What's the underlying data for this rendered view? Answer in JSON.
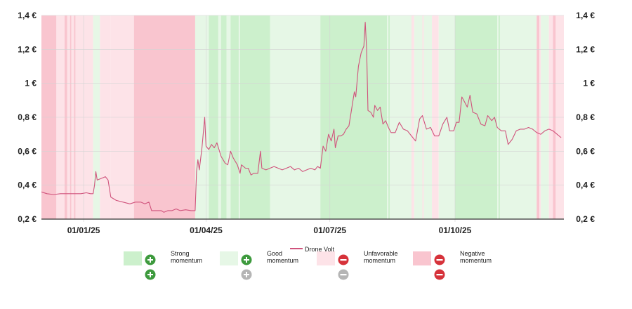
{
  "chart_data": {
    "type": "line",
    "series": [
      {
        "name": "Drone Volt",
        "color": "#d0537c",
        "points": [
          [
            "2024-12-01",
            0.36
          ],
          [
            "2024-12-05",
            0.35
          ],
          [
            "2024-12-10",
            0.345
          ],
          [
            "2024-12-15",
            0.35
          ],
          [
            "2024-12-20",
            0.35
          ],
          [
            "2024-12-25",
            0.35
          ],
          [
            "2024-12-30",
            0.35
          ],
          [
            "2025-01-03",
            0.355
          ],
          [
            "2025-01-06",
            0.35
          ],
          [
            "2025-01-08",
            0.35
          ],
          [
            "2025-01-09",
            0.4
          ],
          [
            "2025-01-10",
            0.48
          ],
          [
            "2025-01-11",
            0.43
          ],
          [
            "2025-01-14",
            0.44
          ],
          [
            "2025-01-17",
            0.45
          ],
          [
            "2025-01-19",
            0.43
          ],
          [
            "2025-01-21",
            0.33
          ],
          [
            "2025-01-25",
            0.31
          ],
          [
            "2025-01-30",
            0.3
          ],
          [
            "2025-02-04",
            0.29
          ],
          [
            "2025-02-08",
            0.3
          ],
          [
            "2025-02-12",
            0.3
          ],
          [
            "2025-02-15",
            0.29
          ],
          [
            "2025-02-18",
            0.3
          ],
          [
            "2025-02-20",
            0.25
          ],
          [
            "2025-02-24",
            0.25
          ],
          [
            "2025-02-27",
            0.25
          ],
          [
            "2025-03-01",
            0.24
          ],
          [
            "2025-03-04",
            0.25
          ],
          [
            "2025-03-07",
            0.25
          ],
          [
            "2025-03-10",
            0.26
          ],
          [
            "2025-03-13",
            0.25
          ],
          [
            "2025-03-17",
            0.255
          ],
          [
            "2025-03-21",
            0.25
          ],
          [
            "2025-03-24",
            0.25
          ],
          [
            "2025-03-25",
            0.48
          ],
          [
            "2025-03-26",
            0.55
          ],
          [
            "2025-03-27",
            0.49
          ],
          [
            "2025-03-29",
            0.62
          ],
          [
            "2025-03-31",
            0.8
          ],
          [
            "2025-04-01",
            0.63
          ],
          [
            "2025-04-03",
            0.61
          ],
          [
            "2025-04-05",
            0.64
          ],
          [
            "2025-04-07",
            0.62
          ],
          [
            "2025-04-09",
            0.65
          ],
          [
            "2025-04-12",
            0.57
          ],
          [
            "2025-04-15",
            0.53
          ],
          [
            "2025-04-17",
            0.52
          ],
          [
            "2025-04-19",
            0.6
          ],
          [
            "2025-04-21",
            0.56
          ],
          [
            "2025-04-24",
            0.52
          ],
          [
            "2025-04-26",
            0.47
          ],
          [
            "2025-04-27",
            0.52
          ],
          [
            "2025-04-30",
            0.5
          ],
          [
            "2025-05-02",
            0.5
          ],
          [
            "2025-05-04",
            0.46
          ],
          [
            "2025-05-06",
            0.47
          ],
          [
            "2025-05-09",
            0.47
          ],
          [
            "2025-05-11",
            0.6
          ],
          [
            "2025-05-12",
            0.5
          ],
          [
            "2025-05-15",
            0.49
          ],
          [
            "2025-05-18",
            0.5
          ],
          [
            "2025-05-21",
            0.51
          ],
          [
            "2025-05-24",
            0.5
          ],
          [
            "2025-05-27",
            0.49
          ],
          [
            "2025-05-30",
            0.5
          ],
          [
            "2025-06-02",
            0.51
          ],
          [
            "2025-06-05",
            0.49
          ],
          [
            "2025-06-08",
            0.5
          ],
          [
            "2025-06-11",
            0.48
          ],
          [
            "2025-06-14",
            0.49
          ],
          [
            "2025-06-17",
            0.5
          ],
          [
            "2025-06-20",
            0.49
          ],
          [
            "2025-06-22",
            0.51
          ],
          [
            "2025-06-24",
            0.5
          ],
          [
            "2025-06-26",
            0.63
          ],
          [
            "2025-06-28",
            0.6
          ],
          [
            "2025-06-30",
            0.7
          ],
          [
            "2025-07-02",
            0.66
          ],
          [
            "2025-07-04",
            0.73
          ],
          [
            "2025-07-05",
            0.62
          ],
          [
            "2025-07-07",
            0.69
          ],
          [
            "2025-07-09",
            0.69
          ],
          [
            "2025-07-11",
            0.7
          ],
          [
            "2025-07-13",
            0.73
          ],
          [
            "2025-07-15",
            0.75
          ],
          [
            "2025-07-17",
            0.85
          ],
          [
            "2025-07-19",
            0.95
          ],
          [
            "2025-07-20",
            0.92
          ],
          [
            "2025-07-22",
            1.1
          ],
          [
            "2025-07-24",
            1.18
          ],
          [
            "2025-07-26",
            1.22
          ],
          [
            "2025-07-27",
            1.36
          ],
          [
            "2025-07-28",
            1.2
          ],
          [
            "2025-07-29",
            0.84
          ],
          [
            "2025-07-31",
            0.83
          ],
          [
            "2025-08-02",
            0.8
          ],
          [
            "2025-08-03",
            0.87
          ],
          [
            "2025-08-05",
            0.84
          ],
          [
            "2025-08-07",
            0.86
          ],
          [
            "2025-08-09",
            0.76
          ],
          [
            "2025-08-11",
            0.78
          ],
          [
            "2025-08-13",
            0.74
          ],
          [
            "2025-08-15",
            0.71
          ],
          [
            "2025-08-18",
            0.71
          ],
          [
            "2025-08-21",
            0.77
          ],
          [
            "2025-08-24",
            0.73
          ],
          [
            "2025-08-27",
            0.72
          ],
          [
            "2025-08-30",
            0.69
          ],
          [
            "2025-09-02",
            0.66
          ],
          [
            "2025-09-05",
            0.79
          ],
          [
            "2025-09-07",
            0.81
          ],
          [
            "2025-09-10",
            0.73
          ],
          [
            "2025-09-13",
            0.74
          ],
          [
            "2025-09-16",
            0.69
          ],
          [
            "2025-09-19",
            0.69
          ],
          [
            "2025-09-22",
            0.76
          ],
          [
            "2025-09-25",
            0.8
          ],
          [
            "2025-09-27",
            0.72
          ],
          [
            "2025-09-30",
            0.72
          ],
          [
            "2025-10-02",
            0.77
          ],
          [
            "2025-10-04",
            0.77
          ],
          [
            "2025-10-06",
            0.92
          ],
          [
            "2025-10-08",
            0.89
          ],
          [
            "2025-10-10",
            0.86
          ],
          [
            "2025-10-12",
            0.93
          ],
          [
            "2025-10-14",
            0.83
          ],
          [
            "2025-10-17",
            0.82
          ],
          [
            "2025-10-20",
            0.76
          ],
          [
            "2025-10-23",
            0.75
          ],
          [
            "2025-10-25",
            0.81
          ],
          [
            "2025-10-28",
            0.78
          ],
          [
            "2025-10-30",
            0.8
          ],
          [
            "2025-11-01",
            0.74
          ],
          [
            "2025-11-04",
            0.72
          ],
          [
            "2025-11-07",
            0.72
          ],
          [
            "2025-11-09",
            0.64
          ],
          [
            "2025-11-12",
            0.67
          ],
          [
            "2025-11-15",
            0.72
          ],
          [
            "2025-11-18",
            0.73
          ],
          [
            "2025-11-21",
            0.73
          ],
          [
            "2025-11-24",
            0.74
          ],
          [
            "2025-11-27",
            0.73
          ],
          [
            "2025-11-30",
            0.71
          ],
          [
            "2025-12-03",
            0.7
          ],
          [
            "2025-12-06",
            0.72
          ],
          [
            "2025-12-09",
            0.73
          ],
          [
            "2025-12-12",
            0.72
          ],
          [
            "2025-12-15",
            0.7
          ],
          [
            "2025-12-18",
            0.68
          ]
        ]
      }
    ],
    "x_ticks": [
      {
        "date": "2025-01-01",
        "label": "01/01/25"
      },
      {
        "date": "2025-04-01",
        "label": "01/04/25"
      },
      {
        "date": "2025-07-01",
        "label": "01/07/25"
      },
      {
        "date": "2025-10-01",
        "label": "01/10/25"
      }
    ],
    "xlim": [
      "2024-12-01",
      "2025-12-20"
    ],
    "y_ticks": [
      {
        "value": 0.2,
        "label": "0,2  €"
      },
      {
        "value": 0.4,
        "label": "0,4  €"
      },
      {
        "value": 0.6,
        "label": "0,6  €"
      },
      {
        "value": 0.8,
        "label": "0,8  €"
      },
      {
        "value": 1.0,
        "label": "1  €"
      },
      {
        "value": 1.2,
        "label": "1,2  €"
      },
      {
        "value": 1.4,
        "label": "1,4  €"
      }
    ],
    "ylim": [
      0.2,
      1.4
    ],
    "grid": true,
    "background_bands": [
      {
        "start": "2024-12-01",
        "end": "2024-12-12",
        "state": "negative"
      },
      {
        "start": "2024-12-12",
        "end": "2024-12-18",
        "state": "unfavorable"
      },
      {
        "start": "2024-12-18",
        "end": "2024-12-20",
        "state": "negative"
      },
      {
        "start": "2024-12-20",
        "end": "2024-12-22",
        "state": "unfavorable"
      },
      {
        "start": "2024-12-22",
        "end": "2024-12-23",
        "state": "negative"
      },
      {
        "start": "2024-12-23",
        "end": "2024-12-25",
        "state": "unfavorable"
      },
      {
        "start": "2024-12-25",
        "end": "2024-12-26",
        "state": "negative"
      },
      {
        "start": "2024-12-26",
        "end": "2025-01-08",
        "state": "unfavorable"
      },
      {
        "start": "2025-01-08",
        "end": "2025-01-13",
        "state": "good"
      },
      {
        "start": "2025-01-13",
        "end": "2025-01-21",
        "state": "unfavorable"
      },
      {
        "start": "2025-01-21",
        "end": "2025-02-07",
        "state": "unfavorable"
      },
      {
        "start": "2025-02-07",
        "end": "2025-03-24",
        "state": "negative"
      },
      {
        "start": "2025-03-24",
        "end": "2025-04-03",
        "state": "good"
      },
      {
        "start": "2025-04-03",
        "end": "2025-04-10",
        "state": "strong"
      },
      {
        "start": "2025-04-10",
        "end": "2025-04-12",
        "state": "good"
      },
      {
        "start": "2025-04-12",
        "end": "2025-04-16",
        "state": "strong"
      },
      {
        "start": "2025-04-16",
        "end": "2025-04-19",
        "state": "good"
      },
      {
        "start": "2025-04-19",
        "end": "2025-04-25",
        "state": "strong"
      },
      {
        "start": "2025-04-25",
        "end": "2025-04-26",
        "state": "good"
      },
      {
        "start": "2025-04-26",
        "end": "2025-05-18",
        "state": "strong"
      },
      {
        "start": "2025-05-18",
        "end": "2025-06-24",
        "state": "good"
      },
      {
        "start": "2025-06-24",
        "end": "2025-08-12",
        "state": "strong"
      },
      {
        "start": "2025-08-12",
        "end": "2025-08-13",
        "state": "good"
      },
      {
        "start": "2025-08-13",
        "end": "2025-08-14",
        "state": "strong"
      },
      {
        "start": "2025-08-14",
        "end": "2025-08-30",
        "state": "good"
      },
      {
        "start": "2025-08-30",
        "end": "2025-09-01",
        "state": "unfavorable"
      },
      {
        "start": "2025-09-01",
        "end": "2025-09-07",
        "state": "good"
      },
      {
        "start": "2025-09-07",
        "end": "2025-09-08",
        "state": "unfavorable"
      },
      {
        "start": "2025-09-08",
        "end": "2025-09-14",
        "state": "good"
      },
      {
        "start": "2025-09-14",
        "end": "2025-09-19",
        "state": "unfavorable"
      },
      {
        "start": "2025-09-19",
        "end": "2025-10-01",
        "state": "good"
      },
      {
        "start": "2025-10-01",
        "end": "2025-11-01",
        "state": "strong"
      },
      {
        "start": "2025-11-01",
        "end": "2025-11-02",
        "state": "good"
      },
      {
        "start": "2025-11-02",
        "end": "2025-11-03",
        "state": "strong"
      },
      {
        "start": "2025-11-03",
        "end": "2025-11-30",
        "state": "good"
      },
      {
        "start": "2025-11-30",
        "end": "2025-12-02",
        "state": "negative"
      },
      {
        "start": "2025-12-02",
        "end": "2025-12-03",
        "state": "unfavorable"
      },
      {
        "start": "2025-12-03",
        "end": "2025-12-09",
        "state": "good"
      },
      {
        "start": "2025-12-09",
        "end": "2025-12-12",
        "state": "unfavorable"
      },
      {
        "start": "2025-12-12",
        "end": "2025-12-14",
        "state": "negative"
      },
      {
        "start": "2025-12-14",
        "end": "2025-12-20",
        "state": "unfavorable"
      }
    ],
    "legend_placement": "bottom",
    "legend": [
      {
        "key": "strong",
        "label": "Strong\nmomentum",
        "color": "#ccf0cc",
        "icons": [
          "plus",
          "plus"
        ]
      },
      {
        "key": "good",
        "label": "Good\nmomentum",
        "color": "#e6f7e6",
        "icons": [
          "plus",
          "plus-grey"
        ]
      },
      {
        "key": "unfavorable",
        "label": "Unfavorable\nmomentum",
        "color": "#fde3e8",
        "icons": [
          "minus",
          "minus-grey"
        ]
      },
      {
        "key": "negative",
        "label": "Negative\nmomentum",
        "color": "#f9c5cf",
        "icons": [
          "minus",
          "minus"
        ]
      }
    ]
  }
}
